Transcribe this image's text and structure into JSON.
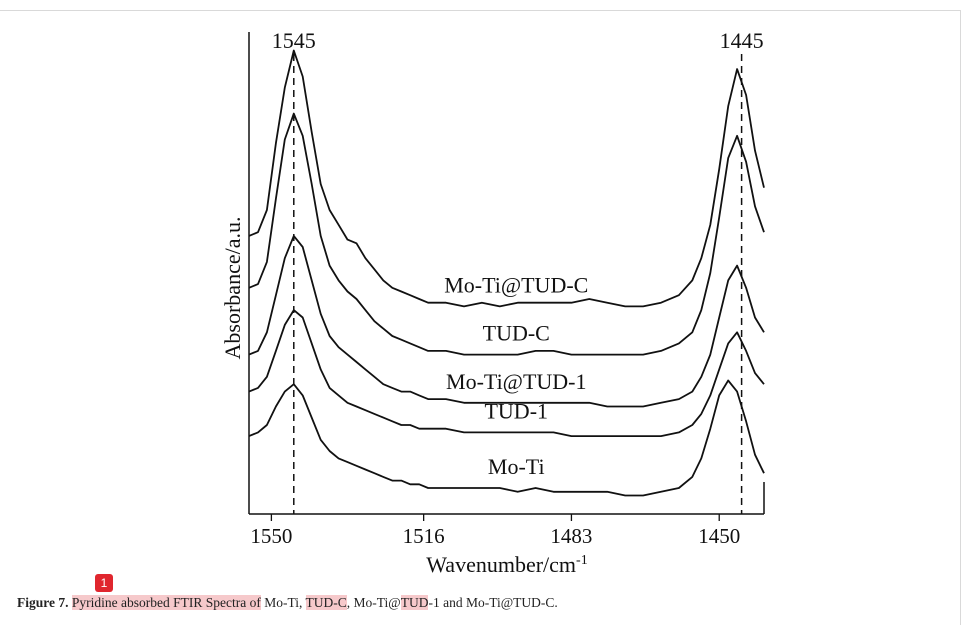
{
  "chart_data": {
    "type": "line",
    "xlabel": "Wavenumber/cm-1",
    "ylabel": "Absorbance/a.u.",
    "x_ticks": [
      1550,
      1516,
      1483,
      1450
    ],
    "xlim": [
      1555,
      1440
    ],
    "peak_labels": [
      {
        "label": "1545",
        "x": 1545
      },
      {
        "label": "1445",
        "x": 1445
      }
    ],
    "series": [
      {
        "name": "Mo-Ti@TUD-C",
        "points": [
          [
            1555,
            0.92
          ],
          [
            1553,
            0.93
          ],
          [
            1551,
            0.99
          ],
          [
            1549,
            1.17
          ],
          [
            1547,
            1.32
          ],
          [
            1545,
            1.42
          ],
          [
            1543,
            1.35
          ],
          [
            1541,
            1.2
          ],
          [
            1539,
            1.06
          ],
          [
            1537,
            0.99
          ],
          [
            1535,
            0.95
          ],
          [
            1533,
            0.91
          ],
          [
            1531,
            0.9
          ],
          [
            1529,
            0.86
          ],
          [
            1527,
            0.83
          ],
          [
            1525,
            0.8
          ],
          [
            1523,
            0.78
          ],
          [
            1521,
            0.77
          ],
          [
            1519,
            0.76
          ],
          [
            1517,
            0.75
          ],
          [
            1515,
            0.74
          ],
          [
            1511,
            0.74
          ],
          [
            1507,
            0.73
          ],
          [
            1503,
            0.74
          ],
          [
            1499,
            0.73
          ],
          [
            1495,
            0.74
          ],
          [
            1491,
            0.74
          ],
          [
            1487,
            0.74
          ],
          [
            1483,
            0.74
          ],
          [
            1479,
            0.75
          ],
          [
            1475,
            0.74
          ],
          [
            1471,
            0.73
          ],
          [
            1467,
            0.73
          ],
          [
            1463,
            0.74
          ],
          [
            1459,
            0.76
          ],
          [
            1456,
            0.8
          ],
          [
            1454,
            0.86
          ],
          [
            1452,
            0.95
          ],
          [
            1450,
            1.1
          ],
          [
            1448,
            1.27
          ],
          [
            1446,
            1.37
          ],
          [
            1444,
            1.3
          ],
          [
            1442,
            1.15
          ],
          [
            1440,
            1.05
          ]
        ]
      },
      {
        "name": "TUD-C",
        "points": [
          [
            1555,
            0.78
          ],
          [
            1553,
            0.79
          ],
          [
            1551,
            0.85
          ],
          [
            1549,
            1.02
          ],
          [
            1547,
            1.18
          ],
          [
            1545,
            1.25
          ],
          [
            1543,
            1.19
          ],
          [
            1541,
            1.06
          ],
          [
            1539,
            0.92
          ],
          [
            1537,
            0.84
          ],
          [
            1535,
            0.8
          ],
          [
            1533,
            0.77
          ],
          [
            1531,
            0.75
          ],
          [
            1529,
            0.72
          ],
          [
            1527,
            0.69
          ],
          [
            1525,
            0.67
          ],
          [
            1523,
            0.65
          ],
          [
            1521,
            0.64
          ],
          [
            1519,
            0.63
          ],
          [
            1517,
            0.62
          ],
          [
            1515,
            0.61
          ],
          [
            1511,
            0.61
          ],
          [
            1507,
            0.6
          ],
          [
            1503,
            0.6
          ],
          [
            1499,
            0.6
          ],
          [
            1495,
            0.6
          ],
          [
            1491,
            0.61
          ],
          [
            1487,
            0.61
          ],
          [
            1483,
            0.6
          ],
          [
            1479,
            0.6
          ],
          [
            1475,
            0.6
          ],
          [
            1471,
            0.6
          ],
          [
            1467,
            0.6
          ],
          [
            1463,
            0.61
          ],
          [
            1459,
            0.63
          ],
          [
            1456,
            0.66
          ],
          [
            1454,
            0.72
          ],
          [
            1452,
            0.82
          ],
          [
            1450,
            0.97
          ],
          [
            1448,
            1.13
          ],
          [
            1446,
            1.19
          ],
          [
            1444,
            1.12
          ],
          [
            1442,
            1.0
          ],
          [
            1440,
            0.93
          ]
        ]
      },
      {
        "name": "Mo-Ti@TUD-1",
        "points": [
          [
            1555,
            0.6
          ],
          [
            1553,
            0.61
          ],
          [
            1551,
            0.66
          ],
          [
            1549,
            0.76
          ],
          [
            1547,
            0.86
          ],
          [
            1545,
            0.92
          ],
          [
            1543,
            0.89
          ],
          [
            1541,
            0.8
          ],
          [
            1539,
            0.71
          ],
          [
            1537,
            0.65
          ],
          [
            1535,
            0.62
          ],
          [
            1533,
            0.6
          ],
          [
            1531,
            0.58
          ],
          [
            1529,
            0.56
          ],
          [
            1527,
            0.54
          ],
          [
            1525,
            0.52
          ],
          [
            1523,
            0.51
          ],
          [
            1521,
            0.5
          ],
          [
            1519,
            0.5
          ],
          [
            1517,
            0.49
          ],
          [
            1515,
            0.48
          ],
          [
            1511,
            0.48
          ],
          [
            1507,
            0.47
          ],
          [
            1503,
            0.47
          ],
          [
            1499,
            0.47
          ],
          [
            1495,
            0.47
          ],
          [
            1491,
            0.47
          ],
          [
            1487,
            0.47
          ],
          [
            1483,
            0.47
          ],
          [
            1479,
            0.47
          ],
          [
            1475,
            0.46
          ],
          [
            1471,
            0.46
          ],
          [
            1467,
            0.46
          ],
          [
            1463,
            0.47
          ],
          [
            1459,
            0.48
          ],
          [
            1456,
            0.5
          ],
          [
            1454,
            0.54
          ],
          [
            1452,
            0.6
          ],
          [
            1450,
            0.7
          ],
          [
            1448,
            0.8
          ],
          [
            1446,
            0.84
          ],
          [
            1444,
            0.78
          ],
          [
            1442,
            0.7
          ],
          [
            1440,
            0.66
          ]
        ]
      },
      {
        "name": "TUD-1",
        "points": [
          [
            1555,
            0.5
          ],
          [
            1553,
            0.51
          ],
          [
            1551,
            0.54
          ],
          [
            1549,
            0.61
          ],
          [
            1547,
            0.68
          ],
          [
            1545,
            0.72
          ],
          [
            1543,
            0.7
          ],
          [
            1541,
            0.63
          ],
          [
            1539,
            0.56
          ],
          [
            1537,
            0.51
          ],
          [
            1535,
            0.49
          ],
          [
            1533,
            0.47
          ],
          [
            1531,
            0.46
          ],
          [
            1529,
            0.45
          ],
          [
            1527,
            0.44
          ],
          [
            1525,
            0.43
          ],
          [
            1523,
            0.42
          ],
          [
            1521,
            0.41
          ],
          [
            1519,
            0.41
          ],
          [
            1517,
            0.4
          ],
          [
            1515,
            0.4
          ],
          [
            1511,
            0.4
          ],
          [
            1507,
            0.39
          ],
          [
            1503,
            0.39
          ],
          [
            1499,
            0.39
          ],
          [
            1495,
            0.39
          ],
          [
            1491,
            0.39
          ],
          [
            1487,
            0.39
          ],
          [
            1483,
            0.38
          ],
          [
            1479,
            0.38
          ],
          [
            1475,
            0.38
          ],
          [
            1471,
            0.38
          ],
          [
            1467,
            0.38
          ],
          [
            1463,
            0.38
          ],
          [
            1459,
            0.39
          ],
          [
            1456,
            0.41
          ],
          [
            1454,
            0.44
          ],
          [
            1452,
            0.49
          ],
          [
            1450,
            0.56
          ],
          [
            1448,
            0.63
          ],
          [
            1446,
            0.66
          ],
          [
            1444,
            0.61
          ],
          [
            1442,
            0.55
          ],
          [
            1440,
            0.52
          ]
        ]
      },
      {
        "name": "Mo-Ti",
        "points": [
          [
            1555,
            0.38
          ],
          [
            1553,
            0.39
          ],
          [
            1551,
            0.41
          ],
          [
            1549,
            0.46
          ],
          [
            1547,
            0.5
          ],
          [
            1545,
            0.52
          ],
          [
            1543,
            0.49
          ],
          [
            1541,
            0.43
          ],
          [
            1539,
            0.37
          ],
          [
            1537,
            0.34
          ],
          [
            1535,
            0.32
          ],
          [
            1533,
            0.31
          ],
          [
            1531,
            0.3
          ],
          [
            1529,
            0.29
          ],
          [
            1527,
            0.28
          ],
          [
            1525,
            0.27
          ],
          [
            1523,
            0.26
          ],
          [
            1521,
            0.26
          ],
          [
            1519,
            0.25
          ],
          [
            1517,
            0.25
          ],
          [
            1515,
            0.24
          ],
          [
            1511,
            0.24
          ],
          [
            1507,
            0.24
          ],
          [
            1503,
            0.24
          ],
          [
            1499,
            0.24
          ],
          [
            1495,
            0.23
          ],
          [
            1491,
            0.24
          ],
          [
            1487,
            0.23
          ],
          [
            1483,
            0.23
          ],
          [
            1479,
            0.23
          ],
          [
            1475,
            0.23
          ],
          [
            1471,
            0.22
          ],
          [
            1467,
            0.22
          ],
          [
            1463,
            0.23
          ],
          [
            1459,
            0.24
          ],
          [
            1456,
            0.27
          ],
          [
            1454,
            0.32
          ],
          [
            1452,
            0.4
          ],
          [
            1450,
            0.49
          ],
          [
            1448,
            0.53
          ],
          [
            1446,
            0.5
          ],
          [
            1444,
            0.42
          ],
          [
            1442,
            0.33
          ],
          [
            1440,
            0.28
          ]
        ]
      }
    ],
    "ylim": [
      0.17,
      1.47
    ]
  },
  "caption": {
    "label": "Figure 7.",
    "part1": "Pyridine absorbed FTIR Spectra of",
    "part2": " Mo-Ti, ",
    "part3": "TUD-C",
    "part4": ", Mo-Ti@",
    "part5": "TUD",
    "part6": "-1 and Mo-Ti@TUD-C."
  },
  "annotation_marker": "1",
  "colors": {
    "line": "#111111",
    "highlight": "#f6c9cb",
    "marker": "#e0262e"
  }
}
